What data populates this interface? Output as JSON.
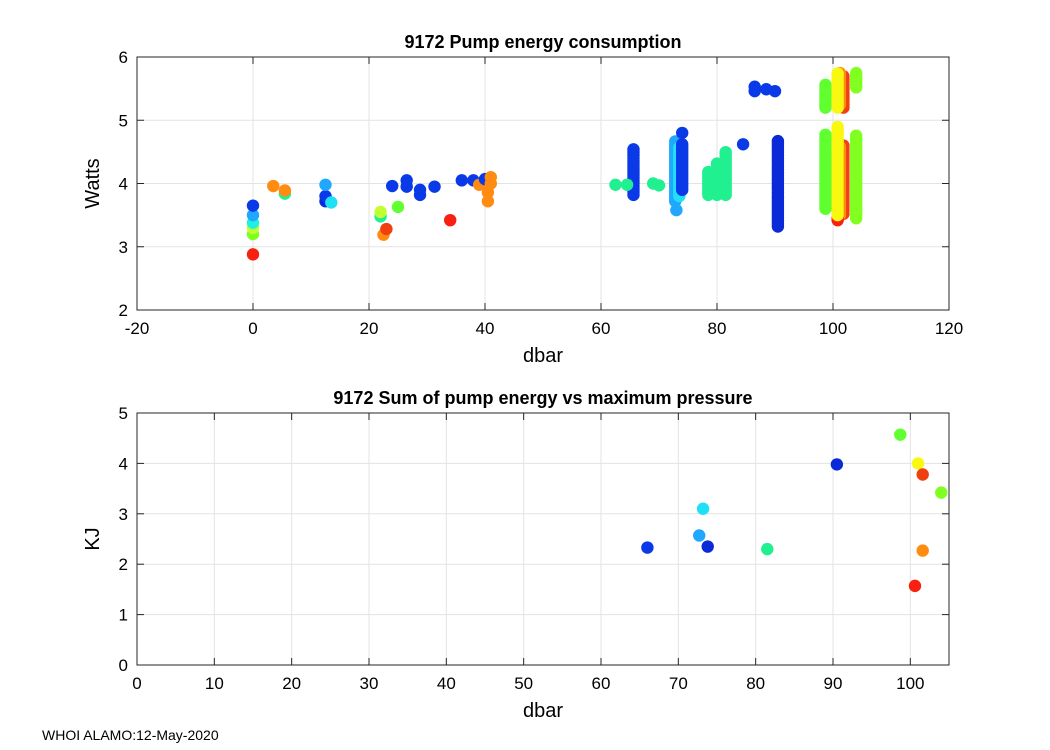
{
  "chart_data": [
    {
      "type": "scatter",
      "title": "9172 Pump energy consumption",
      "xlabel": "dbar",
      "ylabel": "Watts",
      "xlim": [
        -20,
        120
      ],
      "ylim": [
        2,
        6
      ],
      "xticks": [
        -20,
        0,
        20,
        40,
        60,
        80,
        100,
        120
      ],
      "yticks": [
        2,
        3,
        4,
        5,
        6
      ],
      "grid": true,
      "points": [
        {
          "x": 0,
          "y": 2.88,
          "color": "#f82010"
        },
        {
          "x": 0,
          "y": 3.2,
          "color": "#80ff20"
        },
        {
          "x": 0,
          "y": 3.3,
          "color": "#c0ff30"
        },
        {
          "x": 0,
          "y": 3.38,
          "color": "#20f0e0"
        },
        {
          "x": 0,
          "y": 3.5,
          "color": "#20a8ff"
        },
        {
          "x": 0,
          "y": 3.65,
          "color": "#0a3ae8"
        },
        {
          "x": 3.5,
          "y": 3.96,
          "color": "#ff8c10"
        },
        {
          "x": 5.5,
          "y": 3.84,
          "color": "#20f090"
        },
        {
          "x": 5.5,
          "y": 3.89,
          "color": "#ff8c10"
        },
        {
          "x": 12.5,
          "y": 3.72,
          "color": "#0a2ad8"
        },
        {
          "x": 12.5,
          "y": 3.8,
          "color": "#0a3ae8"
        },
        {
          "x": 12.5,
          "y": 3.98,
          "color": "#20a8ff"
        },
        {
          "x": 13.5,
          "y": 3.7,
          "color": "#20e0f8"
        },
        {
          "x": 22,
          "y": 3.48,
          "color": "#20f090"
        },
        {
          "x": 22,
          "y": 3.55,
          "color": "#c0ff30"
        },
        {
          "x": 22.5,
          "y": 3.19,
          "color": "#ff8c10"
        },
        {
          "x": 23,
          "y": 3.28,
          "color": "#f04010"
        },
        {
          "x": 24,
          "y": 3.96,
          "color": "#0a3ae8"
        },
        {
          "x": 25,
          "y": 3.63,
          "color": "#60ff30"
        },
        {
          "x": 26.5,
          "y": 3.95,
          "color": "#0a3ae8"
        },
        {
          "x": 26.5,
          "y": 4.05,
          "color": "#0a3ae8"
        },
        {
          "x": 28.8,
          "y": 3.82,
          "color": "#0a3ae8"
        },
        {
          "x": 28.8,
          "y": 3.9,
          "color": "#0a3ae8"
        },
        {
          "x": 31.3,
          "y": 3.95,
          "color": "#0a3ae8"
        },
        {
          "x": 34,
          "y": 3.42,
          "color": "#f82010"
        },
        {
          "x": 36,
          "y": 4.05,
          "color": "#0a3ae8"
        },
        {
          "x": 38,
          "y": 4.05,
          "color": "#0a3ae8"
        },
        {
          "x": 39,
          "y": 3.98,
          "color": "#ff8c10"
        },
        {
          "x": 40,
          "y": 4.07,
          "color": "#0a3ae8"
        },
        {
          "x": 40.5,
          "y": 3.86,
          "color": "#ff8c10"
        },
        {
          "x": 40.5,
          "y": 3.72,
          "color": "#ff8c10"
        },
        {
          "x": 41,
          "y": 4.1,
          "color": "#ff8c10"
        },
        {
          "x": 41,
          "y": 4.0,
          "color": "#ff8c10"
        },
        {
          "x": 62.5,
          "y": 3.98,
          "color": "#20f090"
        },
        {
          "x": 64.5,
          "y": 3.98,
          "color": "#20f090"
        },
        {
          "x": 69,
          "y": 4.0,
          "color": "#20f090"
        },
        {
          "x": 70,
          "y": 3.97,
          "color": "#20f090"
        },
        {
          "x": 73,
          "y": 3.58,
          "color": "#20a8ff"
        },
        {
          "x": 74,
          "y": 4.8,
          "color": "#0a3ae8"
        },
        {
          "x": 84.5,
          "y": 4.62,
          "color": "#0a3ae8"
        },
        {
          "x": 86.5,
          "y": 5.53,
          "color": "#0a3ae8"
        },
        {
          "x": 86.5,
          "y": 5.46,
          "color": "#0a3ae8"
        },
        {
          "x": 88.5,
          "y": 5.49,
          "color": "#0a3ae8"
        },
        {
          "x": 90,
          "y": 5.46,
          "color": "#0a3ae8"
        }
      ],
      "columns": [
        {
          "x": 65.6,
          "y_min": 3.82,
          "y_max": 4.58,
          "color": "#0a3ae8"
        },
        {
          "x": 72.8,
          "y_min": 3.72,
          "y_max": 4.7,
          "color": "#20a8ff"
        },
        {
          "x": 73.5,
          "y_min": 3.8,
          "y_max": 4.6,
          "color": "#20e0f8"
        },
        {
          "x": 74,
          "y_min": 3.9,
          "y_max": 4.65,
          "color": "#0a3ae8"
        },
        {
          "x": 78.5,
          "y_min": 3.82,
          "y_max": 4.2,
          "color": "#20f090"
        },
        {
          "x": 80,
          "y_min": 3.82,
          "y_max": 4.35,
          "color": "#20f090"
        },
        {
          "x": 81.5,
          "y_min": 3.82,
          "y_max": 4.5,
          "color": "#20f090"
        },
        {
          "x": 90.5,
          "y_min": 3.32,
          "y_max": 4.7,
          "color": "#0a2ad8"
        },
        {
          "x": 98.7,
          "y_min": 3.6,
          "y_max": 4.78,
          "color": "#60ff30"
        },
        {
          "x": 98.7,
          "y_min": 5.2,
          "y_max": 5.57,
          "color": "#60ff30"
        },
        {
          "x": 101.8,
          "y_min": 3.52,
          "y_max": 4.6,
          "color": "#f04010"
        },
        {
          "x": 101.8,
          "y_min": 5.2,
          "y_max": 5.7,
          "color": "#f04010"
        },
        {
          "x": 101.2,
          "y_min": 3.5,
          "y_max": 4.6,
          "color": "#ff8c10"
        },
        {
          "x": 101.2,
          "y_min": 5.25,
          "y_max": 5.75,
          "color": "#ff8c10"
        },
        {
          "x": 100.8,
          "y_min": 3.42,
          "y_max": 4.5,
          "color": "#f82010"
        },
        {
          "x": 104,
          "y_min": 3.45,
          "y_max": 4.78,
          "color": "#80ff20"
        },
        {
          "x": 104,
          "y_min": 5.52,
          "y_max": 5.77,
          "color": "#80ff20"
        },
        {
          "x": 100.8,
          "y_min": 3.5,
          "y_max": 4.9,
          "color": "#f8f810"
        },
        {
          "x": 100.8,
          "y_min": 5.2,
          "y_max": 5.78,
          "color": "#f8f810"
        }
      ]
    },
    {
      "type": "scatter",
      "title": "9172 Sum of pump energy vs maximum pressure",
      "xlabel": "dbar",
      "ylabel": "KJ",
      "xlim": [
        0,
        105
      ],
      "ylim": [
        0,
        5
      ],
      "xticks": [
        0,
        10,
        20,
        30,
        40,
        50,
        60,
        70,
        80,
        90,
        100
      ],
      "yticks": [
        0,
        1,
        2,
        3,
        4,
        5
      ],
      "grid": true,
      "points": [
        {
          "x": 66,
          "y": 2.33,
          "color": "#0a3ae8"
        },
        {
          "x": 72.7,
          "y": 2.57,
          "color": "#20a8ff"
        },
        {
          "x": 73.2,
          "y": 3.1,
          "color": "#20e0f8"
        },
        {
          "x": 73.8,
          "y": 2.35,
          "color": "#0a2ad8"
        },
        {
          "x": 81.5,
          "y": 2.3,
          "color": "#20f090"
        },
        {
          "x": 90.5,
          "y": 3.98,
          "color": "#0a2ad8"
        },
        {
          "x": 98.7,
          "y": 4.57,
          "color": "#60ff30"
        },
        {
          "x": 100.6,
          "y": 1.57,
          "color": "#f82010"
        },
        {
          "x": 101,
          "y": 4.0,
          "color": "#f8f810"
        },
        {
          "x": 101.6,
          "y": 3.78,
          "color": "#f04010"
        },
        {
          "x": 101.6,
          "y": 2.27,
          "color": "#ff8c10"
        },
        {
          "x": 104,
          "y": 3.42,
          "color": "#80ff20"
        }
      ]
    }
  ],
  "footer": "WHOI ALAMO:12-May-2020"
}
